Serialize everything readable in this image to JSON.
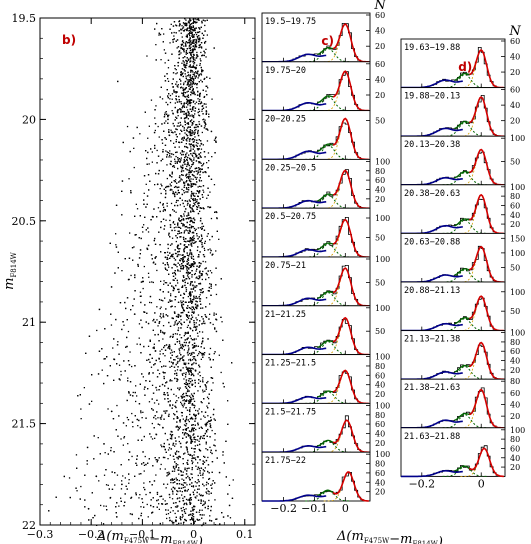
{
  "chart_data": [
    {
      "panel_label": "b)",
      "type": "scatter",
      "xlabel": "Δ(m_F475W−m_F814W)",
      "ylabel": "m_F814W",
      "xlim": [
        -0.3,
        0.12
      ],
      "ylim": [
        22,
        19.5
      ],
      "y_inverted": true,
      "x_ticks": [
        "−0.3",
        "−0.2",
        "−0.1",
        "0",
        "0.1"
      ],
      "y_ticks": [
        "19.5",
        "20",
        "20.5",
        "21",
        "21.5",
        "22"
      ],
      "points": [
        [
          -0.01,
          19.52
        ],
        [
          0.005,
          19.55
        ],
        [
          0.012,
          19.6
        ],
        [
          -0.022,
          19.63
        ],
        [
          0.0,
          19.68
        ],
        [
          -0.03,
          19.72
        ],
        [
          0.018,
          19.76
        ],
        [
          -0.005,
          19.8
        ],
        [
          -0.04,
          19.84
        ],
        [
          0.008,
          19.88
        ],
        [
          -0.018,
          19.92
        ],
        [
          0.025,
          19.96
        ],
        [
          -0.05,
          20.0
        ],
        [
          0.002,
          20.04
        ],
        [
          -0.012,
          20.08
        ],
        [
          0.015,
          20.12
        ],
        [
          -0.06,
          20.16
        ],
        [
          -0.025,
          20.2
        ],
        [
          0.006,
          20.24
        ],
        [
          0.03,
          20.28
        ],
        [
          -0.07,
          20.32
        ],
        [
          -0.035,
          20.36
        ],
        [
          0.0,
          20.4
        ],
        [
          0.02,
          20.44
        ],
        [
          -0.08,
          20.48
        ],
        [
          -0.045,
          20.52
        ],
        [
          -0.01,
          20.56
        ],
        [
          0.012,
          20.6
        ],
        [
          -0.09,
          20.64
        ],
        [
          -0.055,
          20.68
        ],
        [
          -0.005,
          20.72
        ],
        [
          0.025,
          20.76
        ],
        [
          -0.1,
          20.8
        ],
        [
          -0.065,
          20.84
        ],
        [
          -0.02,
          20.88
        ],
        [
          0.008,
          20.92
        ],
        [
          -0.115,
          20.96
        ],
        [
          -0.075,
          21.0
        ],
        [
          -0.03,
          21.04
        ],
        [
          0.018,
          21.08
        ],
        [
          -0.13,
          21.12
        ],
        [
          -0.085,
          21.16
        ],
        [
          -0.04,
          21.2
        ],
        [
          0.004,
          21.24
        ],
        [
          -0.145,
          21.28
        ],
        [
          -0.095,
          21.32
        ],
        [
          -0.05,
          21.36
        ],
        [
          0.03,
          21.4
        ],
        [
          -0.16,
          21.44
        ],
        [
          -0.11,
          21.48
        ],
        [
          -0.06,
          21.52
        ],
        [
          -0.01,
          21.56
        ],
        [
          -0.175,
          21.6
        ],
        [
          -0.125,
          21.64
        ],
        [
          -0.07,
          21.68
        ],
        [
          0.015,
          21.72
        ],
        [
          -0.19,
          21.76
        ],
        [
          -0.14,
          21.8
        ],
        [
          -0.085,
          21.84
        ],
        [
          -0.02,
          21.88
        ],
        [
          -0.205,
          21.92
        ],
        [
          -0.15,
          21.96
        ],
        [
          0.035,
          21.98
        ]
      ]
    },
    {
      "panel_label": "c)",
      "type": "area",
      "xlabel": "Δ(m_F475W−m_F814W)",
      "ylabel": "N",
      "xlim": [
        -0.27,
        0.08
      ],
      "x_ticks": [
        "−0.2",
        "−0.1",
        "0"
      ],
      "bins": [
        {
          "range": "19.5−19.75",
          "ymax": 60,
          "y_ticks": [
            "60",
            "40",
            "20"
          ],
          "peak_x": 0.0,
          "peak_N": 48
        },
        {
          "range": "19.75−20",
          "ymax": 60,
          "y_ticks": [
            "60",
            "40",
            "20"
          ],
          "peak_x": 0.0,
          "peak_N": 50
        },
        {
          "range": "20−20.25",
          "ymax": 60,
          "y_ticks": [
            "50"
          ],
          "peak_x": 0.0,
          "peak_N": 52
        },
        {
          "range": "20.25−20.5",
          "ymax": 100,
          "y_ticks": [
            "100",
            "80",
            "60",
            "40",
            "20"
          ],
          "peak_x": 0.0,
          "peak_N": 80
        },
        {
          "range": "20.5−20.75",
          "ymax": 120,
          "y_ticks": [
            "100",
            "50"
          ],
          "peak_x": 0.0,
          "peak_N": 95
        },
        {
          "range": "20.75−21",
          "ymax": 100,
          "y_ticks": [
            "100",
            "50"
          ],
          "peak_x": 0.0,
          "peak_N": 80
        },
        {
          "range": "21−21.25",
          "ymax": 100,
          "y_ticks": [
            "100",
            "50"
          ],
          "peak_x": 0.0,
          "peak_N": 78
        },
        {
          "range": "21.25−21.5",
          "ymax": 100,
          "y_ticks": [
            "100",
            "80",
            "60",
            "40",
            "20"
          ],
          "peak_x": 0.0,
          "peak_N": 70
        },
        {
          "range": "21.5−21.75",
          "ymax": 100,
          "y_ticks": [
            "100",
            "80",
            "60",
            "40",
            "20"
          ],
          "peak_x": 0.005,
          "peak_N": 68
        },
        {
          "range": "21.75−22",
          "ymax": 100,
          "y_ticks": [
            "100",
            "80",
            "60",
            "40",
            "20"
          ],
          "peak_x": 0.01,
          "peak_N": 62
        }
      ]
    },
    {
      "panel_label": "d)",
      "type": "area",
      "xlabel": "Δ(m_F475W−m_F814W)",
      "ylabel": "N",
      "xlim": [
        -0.27,
        0.08
      ],
      "x_ticks": [
        "−0.2",
        "0"
      ],
      "bins": [
        {
          "range": "19.63−19.88",
          "ymax": 60,
          "y_ticks": [
            "60",
            "40",
            "20"
          ],
          "peak_x": 0.0,
          "peak_N": 48
        },
        {
          "range": "19.88−20.13",
          "ymax": 60,
          "y_ticks": [
            "60",
            "40",
            "20"
          ],
          "peak_x": 0.0,
          "peak_N": 50
        },
        {
          "range": "20.13−20.38",
          "ymax": 100,
          "y_ticks": [
            "100",
            "50"
          ],
          "peak_x": 0.0,
          "peak_N": 75
        },
        {
          "range": "20.38−20.63",
          "ymax": 100,
          "y_ticks": [
            "100",
            "80",
            "60",
            "40",
            "20"
          ],
          "peak_x": 0.0,
          "peak_N": 82
        },
        {
          "range": "20.63−20.88",
          "ymax": 160,
          "y_ticks": [
            "150",
            "100",
            "50"
          ],
          "peak_x": 0.0,
          "peak_N": 120
        },
        {
          "range": "20.88−21.13",
          "ymax": 120,
          "y_ticks": [
            "100",
            "50"
          ],
          "peak_x": 0.0,
          "peak_N": 88
        },
        {
          "range": "21.13−21.38",
          "ymax": 100,
          "y_ticks": [
            "100",
            "80",
            "60",
            "40",
            "20"
          ],
          "peak_x": 0.0,
          "peak_N": 78
        },
        {
          "range": "21.38−21.63",
          "ymax": 80,
          "y_ticks": [
            "80",
            "60",
            "40",
            "20"
          ],
          "peak_x": 0.0,
          "peak_N": 65
        },
        {
          "range": "21.63−21.88",
          "ymax": 100,
          "y_ticks": [
            "100",
            "80",
            "60",
            "40",
            "20"
          ],
          "peak_x": 0.01,
          "peak_N": 60
        }
      ]
    }
  ],
  "colors": {
    "label": "#c00000",
    "fit_total": "#d40000",
    "fit_blue": "#00008b",
    "fit_green": "#006400",
    "fit_component": "#d4a000"
  }
}
